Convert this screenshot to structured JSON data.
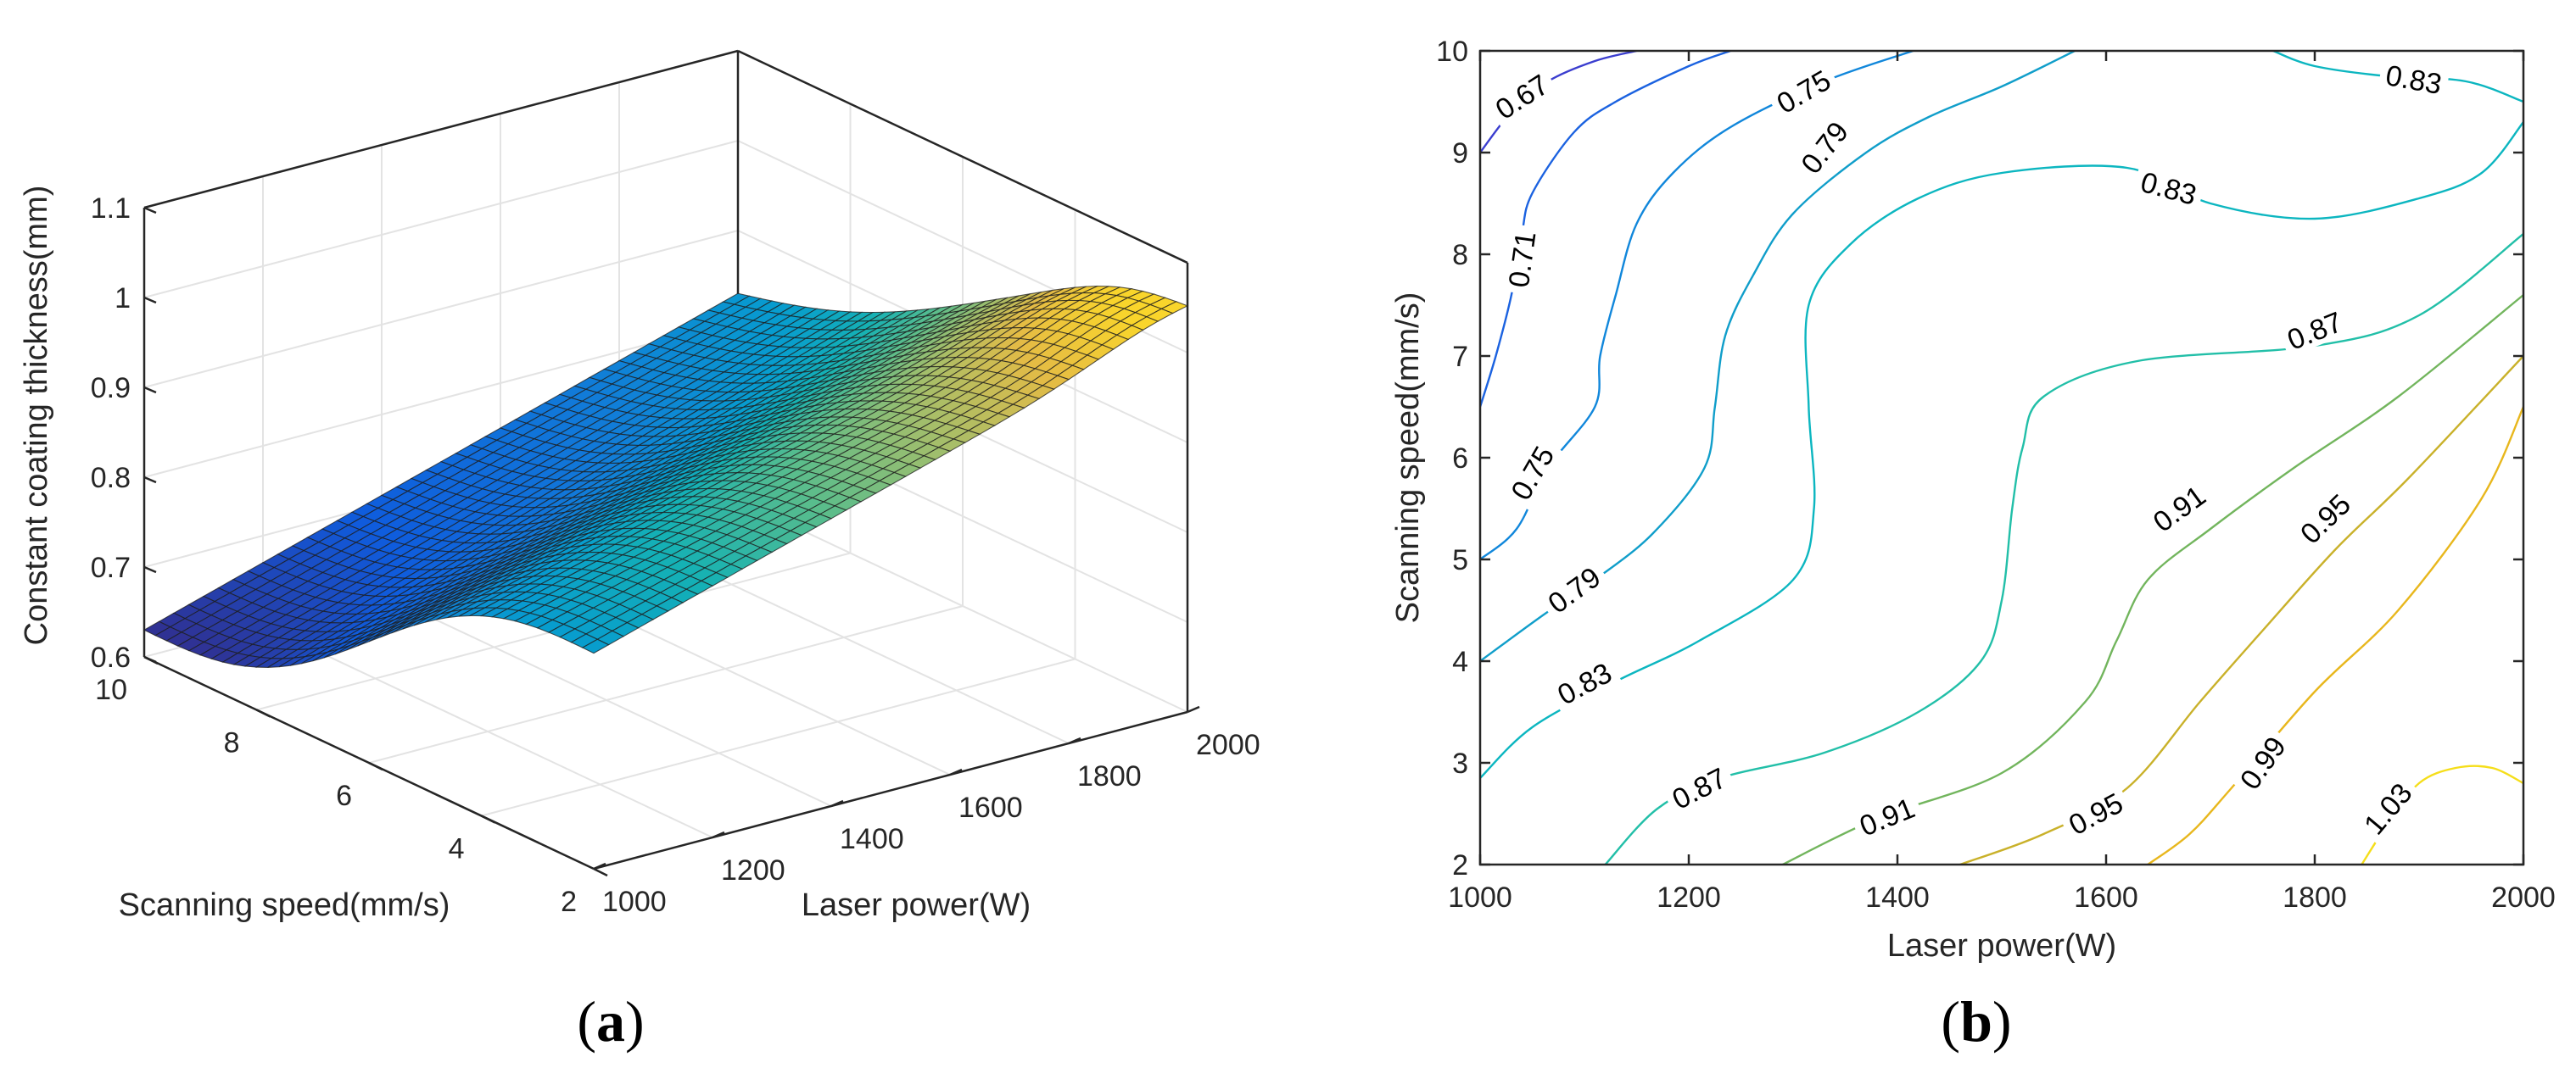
{
  "chart_data": [
    {
      "panel": "(a)",
      "panel_letter": "a",
      "type": "surface3d",
      "title": "",
      "xlabel": "Laser power(W)",
      "ylabel": "Scanning speed(mm/s)",
      "zlabel": "Constant coating thickness(mm)",
      "xlim": [
        1000,
        2000
      ],
      "ylim": [
        2,
        10
      ],
      "zlim": [
        0.6,
        1.1
      ],
      "x_ticks": [
        "1000",
        "1200",
        "1400",
        "1600",
        "1800",
        "2000"
      ],
      "y_ticks": [
        "2",
        "4",
        "6",
        "8",
        "10"
      ],
      "z_ticks": [
        "0.6",
        "0.7",
        "0.8",
        "0.9",
        "1",
        "1.1"
      ],
      "grid": true,
      "colormap": "parula",
      "corner_values": [
        {
          "laser_power": 1000,
          "scanning_speed": 10,
          "thickness": 0.63
        },
        {
          "laser_power": 1000,
          "scanning_speed": 2,
          "thickness": 0.84
        },
        {
          "laser_power": 2000,
          "scanning_speed": 10,
          "thickness": 0.83
        },
        {
          "laser_power": 2000,
          "scanning_speed": 2,
          "thickness": 1.02
        }
      ],
      "peak": {
        "laser_power": 1950,
        "scanning_speed": 3,
        "thickness": 1.04
      }
    },
    {
      "panel": "(b)",
      "panel_letter": "b",
      "type": "contour",
      "title": "",
      "xlabel": "Laser power(W)",
      "ylabel": "Scanning speed(mm/s)",
      "xlim": [
        1000,
        2000
      ],
      "ylim": [
        2,
        10
      ],
      "x_ticks": [
        1000,
        1200,
        1400,
        1600,
        1800,
        2000
      ],
      "y_ticks": [
        2,
        3,
        4,
        5,
        6,
        7,
        8,
        9,
        10
      ],
      "grid": false,
      "levels": [
        {
          "value": "0.67",
          "color": "#3b3ecf",
          "points": [
            [
              1000,
              9.0
            ],
            [
              1030,
              9.4
            ],
            [
              1065,
              9.7
            ],
            [
              1110,
              9.9
            ],
            [
              1150,
              10.0
            ]
          ],
          "label_at": [
            1040,
            9.55
          ],
          "label_angle": -33
        },
        {
          "value": "0.71",
          "color": "#1b62e0",
          "points": [
            [
              1000,
              6.5
            ],
            [
              1015,
              7.0
            ],
            [
              1030,
              7.6
            ],
            [
              1040,
              8.2
            ],
            [
              1050,
              8.6
            ],
            [
              1090,
              9.2
            ],
            [
              1130,
              9.5
            ],
            [
              1200,
              9.85
            ],
            [
              1240,
              10.0
            ]
          ],
          "label_at": [
            1040,
            7.95
          ],
          "label_angle": -82
        },
        {
          "value": "0.75",
          "color": "#1187db",
          "points": [
            [
              1000,
              5.0
            ],
            [
              1035,
              5.3
            ],
            [
              1065,
              5.9
            ],
            [
              1110,
              6.5
            ],
            [
              1115,
              7.0
            ],
            [
              1130,
              7.6
            ],
            [
              1150,
              8.3
            ],
            [
              1185,
              8.8
            ],
            [
              1240,
              9.25
            ],
            [
              1330,
              9.7
            ],
            [
              1415,
              10.0
            ]
          ],
          "label_at": [
            1310,
            9.6
          ],
          "label_angle": -30,
          "label2_at": [
            1050,
            5.85
          ],
          "label2_angle": -60
        },
        {
          "value": "0.79",
          "color": "#109eca",
          "points": [
            [
              1000,
              4.0
            ],
            [
              1060,
              4.45
            ],
            [
              1110,
              4.8
            ],
            [
              1165,
              5.25
            ],
            [
              1215,
              5.9
            ],
            [
              1225,
              6.5
            ],
            [
              1235,
              7.2
            ],
            [
              1262,
              7.8
            ],
            [
              1300,
              8.4
            ],
            [
              1370,
              9.0
            ],
            [
              1430,
              9.35
            ],
            [
              1500,
              9.65
            ],
            [
              1570,
              10.0
            ]
          ],
          "label_at": [
            1330,
            9.05
          ],
          "label_angle": -52,
          "label2_at": [
            1090,
            4.7
          ],
          "label2_angle": -36
        },
        {
          "value": "0.83",
          "color": "#0cb6c0",
          "points": [
            [
              1000,
              2.85
            ],
            [
              1050,
              3.35
            ],
            [
              1130,
              3.8
            ],
            [
              1210,
              4.2
            ],
            [
              1300,
              4.8
            ],
            [
              1320,
              5.5
            ],
            [
              1315,
              6.5
            ],
            [
              1315,
              7.5
            ],
            [
              1355,
              8.1
            ],
            [
              1420,
              8.55
            ],
            [
              1500,
              8.8
            ],
            [
              1620,
              8.85
            ],
            [
              1700,
              8.5
            ],
            [
              1800,
              8.35
            ],
            [
              1900,
              8.55
            ],
            [
              1960,
              8.8
            ],
            [
              2000,
              9.3
            ]
          ],
          "label_at": [
            1660,
            8.65
          ],
          "label_angle": 15,
          "label2_at": [
            1100,
            3.78
          ],
          "label2_angle": -28
        },
        {
          "value": "0.83",
          "color": "#0cb6c0",
          "points": [
            [
              1760,
              10.0
            ],
            [
              1800,
              9.85
            ],
            [
              1870,
              9.75
            ],
            [
              1945,
              9.7
            ],
            [
              2000,
              9.5
            ]
          ],
          "label_at": [
            1895,
            9.72
          ],
          "label_angle": 10
        },
        {
          "value": "0.87",
          "color": "#22bfa8",
          "points": [
            [
              1120,
              2.0
            ],
            [
              1170,
              2.55
            ],
            [
              1230,
              2.85
            ],
            [
              1330,
              3.1
            ],
            [
              1420,
              3.5
            ],
            [
              1480,
              4.0
            ],
            [
              1500,
              4.6
            ],
            [
              1510,
              5.5
            ],
            [
              1520,
              6.1
            ],
            [
              1540,
              6.6
            ],
            [
              1630,
              6.95
            ],
            [
              1800,
              7.1
            ],
            [
              1900,
              7.4
            ],
            [
              2000,
              8.2
            ]
          ],
          "label_at": [
            1800,
            7.25
          ],
          "label_angle": -22,
          "label2_at": [
            1210,
            2.75
          ],
          "label2_angle": -27
        },
        {
          "value": "0.91",
          "color": "#72b55d",
          "points": [
            [
              1290,
              2.0
            ],
            [
              1380,
              2.45
            ],
            [
              1500,
              2.9
            ],
            [
              1580,
              3.6
            ],
            [
              1610,
              4.2
            ],
            [
              1640,
              4.8
            ],
            [
              1700,
              5.3
            ],
            [
              1780,
              5.9
            ],
            [
              1880,
              6.6
            ],
            [
              2000,
              7.6
            ]
          ],
          "label_at": [
            1390,
            2.47
          ],
          "label_angle": -22,
          "label2_at": [
            1670,
            5.5
          ],
          "label2_angle": -36
        },
        {
          "value": "0.95",
          "color": "#c9b12a",
          "points": [
            [
              1460,
              2.0
            ],
            [
              1540,
              2.3
            ],
            [
              1620,
              2.75
            ],
            [
              1690,
              3.6
            ],
            [
              1750,
              4.3
            ],
            [
              1820,
              5.1
            ],
            [
              1890,
              5.8
            ],
            [
              2000,
              7.0
            ]
          ],
          "label_at": [
            1590,
            2.5
          ],
          "label_angle": -28,
          "label2_at": [
            1810,
            5.4
          ],
          "label2_angle": -44
        },
        {
          "value": "0.99",
          "color": "#e8b71d",
          "points": [
            [
              1640,
              2.0
            ],
            [
              1680,
              2.3
            ],
            [
              1720,
              2.75
            ],
            [
              1800,
              3.7
            ],
            [
              1880,
              4.5
            ],
            [
              1960,
              5.6
            ],
            [
              2000,
              6.5
            ]
          ],
          "label_at": [
            1750,
            3.0
          ],
          "label_angle": -55
        },
        {
          "value": "1.03",
          "color": "#f5de1a",
          "points": [
            [
              1845,
              2.0
            ],
            [
              1870,
              2.4
            ],
            [
              1900,
              2.8
            ],
            [
              1935,
              2.95
            ],
            [
              1970,
              2.95
            ],
            [
              2000,
              2.8
            ]
          ],
          "label_at": [
            1870,
            2.55
          ],
          "label_angle": -50
        }
      ]
    }
  ]
}
